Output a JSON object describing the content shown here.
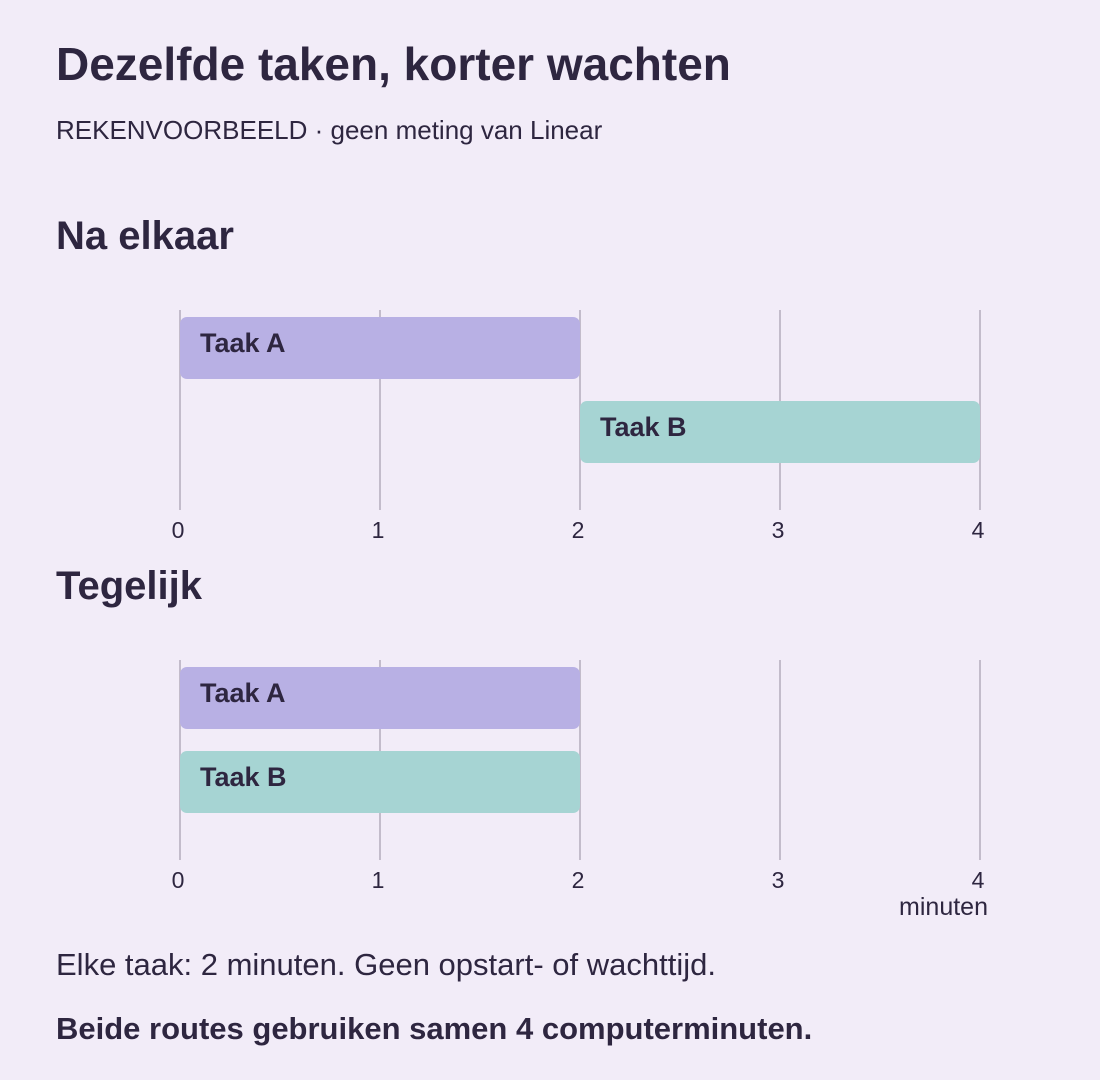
{
  "title": "Dezelfde taken, korter wachten",
  "subtitle": "REKENVOORBEELD · geen meting van Linear",
  "axis_unit": "minuten",
  "note": "Elke taak: 2 minuten. Geen opstart- of wachttijd.",
  "conclusion": "Beide routes gebruiken samen 4 computerminuten.",
  "colors": {
    "taak_a": "#b8b0e4",
    "taak_b": "#a6d4d3",
    "grid": "#c3bccb",
    "text": "#2e2640",
    "background": "#f2ecf8"
  },
  "chart_data": [
    {
      "type": "bar",
      "title": "Na elkaar",
      "xlim": [
        0,
        4
      ],
      "xticks": [
        0,
        1,
        2,
        3,
        4
      ],
      "grid": true,
      "bars": [
        {
          "label": "Taak A",
          "start": 0,
          "end": 2,
          "color_key": "taak_a"
        },
        {
          "label": "Taak B",
          "start": 2,
          "end": 4,
          "color_key": "taak_b"
        }
      ]
    },
    {
      "type": "bar",
      "title": "Tegelijk",
      "xlim": [
        0,
        4
      ],
      "xticks": [
        0,
        1,
        2,
        3,
        4
      ],
      "xlabel": "minuten",
      "grid": true,
      "bars": [
        {
          "label": "Taak A",
          "start": 0,
          "end": 2,
          "color_key": "taak_a"
        },
        {
          "label": "Taak B",
          "start": 0,
          "end": 2,
          "color_key": "taak_b"
        }
      ]
    }
  ]
}
